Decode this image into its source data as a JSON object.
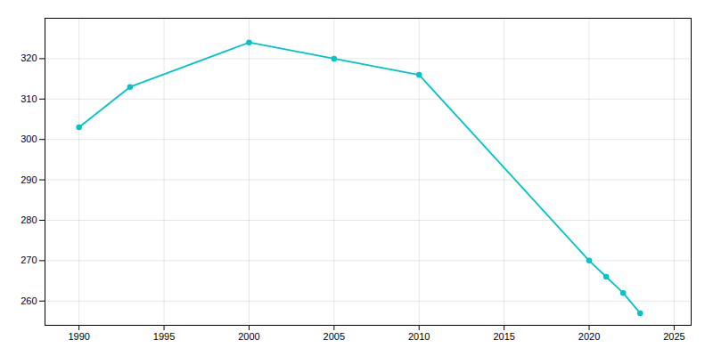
{
  "chart_data": {
    "type": "line",
    "x": [
      1990,
      1993,
      2000,
      2005,
      2010,
      2020,
      2021,
      2022,
      2023
    ],
    "values": [
      303,
      313,
      324,
      320,
      316,
      270,
      266,
      262,
      257
    ],
    "color": "#00C5C8",
    "marker": "circle",
    "xlim": [
      1988,
      2026
    ],
    "xticks": [
      1990,
      1995,
      2000,
      2005,
      2010,
      2015,
      2020,
      2025
    ],
    "ylim": [
      254,
      330
    ],
    "yticks": [
      260,
      270,
      280,
      290,
      300,
      310,
      320
    ],
    "grid": true
  }
}
